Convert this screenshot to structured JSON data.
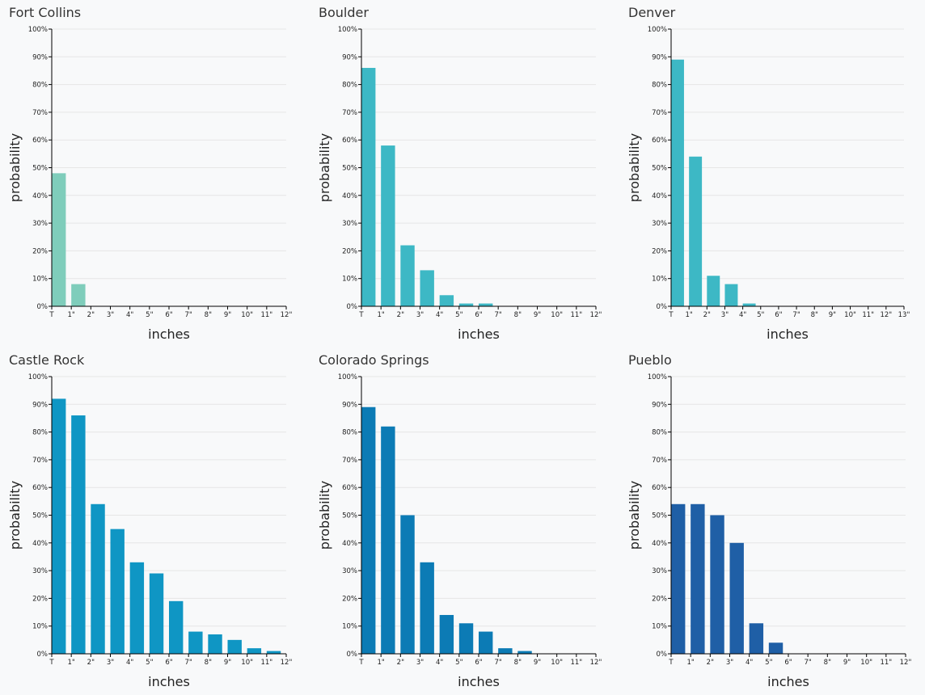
{
  "chart_data": [
    {
      "type": "histogram",
      "title": "Fort Collins",
      "xlabel": "inches",
      "ylabel": "probability",
      "color": "#7fcdbb",
      "bins": [
        {
          "value": 0,
          "label": "T"
        },
        {
          "value": 1,
          "label": "1\""
        },
        {
          "value": 2,
          "label": "2\""
        },
        {
          "value": 3,
          "label": "3\""
        },
        {
          "value": 4,
          "label": "4\""
        },
        {
          "value": 5,
          "label": "5\""
        },
        {
          "value": 6,
          "label": "6\""
        },
        {
          "value": 7,
          "label": "7\""
        },
        {
          "value": 8,
          "label": "8\""
        },
        {
          "value": 9,
          "label": "9\""
        },
        {
          "value": 10,
          "label": "10\""
        },
        {
          "value": 11,
          "label": "11\""
        },
        {
          "value": 12,
          "label": "12\""
        }
      ],
      "values": [
        48,
        8,
        0,
        0,
        0,
        0,
        0,
        0,
        0,
        0,
        0,
        0
      ],
      "xlim": [
        0,
        12
      ],
      "ylim": [
        0,
        100
      ],
      "yticks": [
        {
          "value": 0,
          "label": "0%"
        },
        {
          "value": 10,
          "label": "10%"
        },
        {
          "value": 20,
          "label": "20%"
        },
        {
          "value": 30,
          "label": "30%"
        },
        {
          "value": 40,
          "label": "40%"
        },
        {
          "value": 50,
          "label": "50%"
        },
        {
          "value": 60,
          "label": "60%"
        },
        {
          "value": 70,
          "label": "70%"
        },
        {
          "value": 80,
          "label": "80%"
        },
        {
          "value": 90,
          "label": "90%"
        },
        {
          "value": 100,
          "label": "100%"
        }
      ],
      "grid": true
    },
    {
      "type": "histogram",
      "title": "Boulder",
      "xlabel": "inches",
      "ylabel": "probability",
      "color": "#3db8c5",
      "bins": [
        {
          "value": 0,
          "label": "T"
        },
        {
          "value": 1,
          "label": "1\""
        },
        {
          "value": 2,
          "label": "2\""
        },
        {
          "value": 3,
          "label": "3\""
        },
        {
          "value": 4,
          "label": "4\""
        },
        {
          "value": 5,
          "label": "5\""
        },
        {
          "value": 6,
          "label": "6\""
        },
        {
          "value": 7,
          "label": "7\""
        },
        {
          "value": 8,
          "label": "8\""
        },
        {
          "value": 9,
          "label": "9\""
        },
        {
          "value": 10,
          "label": "10\""
        },
        {
          "value": 11,
          "label": "11\""
        },
        {
          "value": 12,
          "label": "12\""
        }
      ],
      "values": [
        86,
        58,
        22,
        13,
        4,
        1,
        1,
        0,
        0,
        0,
        0,
        0
      ],
      "xlim": [
        0,
        12
      ],
      "ylim": [
        0,
        100
      ],
      "yticks": [
        {
          "value": 0,
          "label": "0%"
        },
        {
          "value": 10,
          "label": "10%"
        },
        {
          "value": 20,
          "label": "20%"
        },
        {
          "value": 30,
          "label": "30%"
        },
        {
          "value": 40,
          "label": "40%"
        },
        {
          "value": 50,
          "label": "50%"
        },
        {
          "value": 60,
          "label": "60%"
        },
        {
          "value": 70,
          "label": "70%"
        },
        {
          "value": 80,
          "label": "80%"
        },
        {
          "value": 90,
          "label": "90%"
        },
        {
          "value": 100,
          "label": "100%"
        }
      ],
      "grid": true
    },
    {
      "type": "histogram",
      "title": "Denver",
      "xlabel": "inches",
      "ylabel": "probability",
      "color": "#3db8c5",
      "bins": [
        {
          "value": 0,
          "label": "T"
        },
        {
          "value": 1,
          "label": "1\""
        },
        {
          "value": 2,
          "label": "2\""
        },
        {
          "value": 3,
          "label": "3\""
        },
        {
          "value": 4,
          "label": "4\""
        },
        {
          "value": 5,
          "label": "5\""
        },
        {
          "value": 6,
          "label": "6\""
        },
        {
          "value": 7,
          "label": "7\""
        },
        {
          "value": 8,
          "label": "8\""
        },
        {
          "value": 9,
          "label": "9\""
        },
        {
          "value": 10,
          "label": "10\""
        },
        {
          "value": 11,
          "label": "11\""
        },
        {
          "value": 12,
          "label": "12\""
        },
        {
          "value": 13,
          "label": "13\""
        }
      ],
      "values": [
        89,
        54,
        11,
        8,
        1,
        0,
        0,
        0,
        0,
        0,
        0,
        0,
        0
      ],
      "xlim": [
        0,
        13
      ],
      "ylim": [
        0,
        100
      ],
      "yticks": [
        {
          "value": 0,
          "label": "0%"
        },
        {
          "value": 10,
          "label": "10%"
        },
        {
          "value": 20,
          "label": "20%"
        },
        {
          "value": 30,
          "label": "30%"
        },
        {
          "value": 40,
          "label": "40%"
        },
        {
          "value": 50,
          "label": "50%"
        },
        {
          "value": 60,
          "label": "60%"
        },
        {
          "value": 70,
          "label": "70%"
        },
        {
          "value": 80,
          "label": "80%"
        },
        {
          "value": 90,
          "label": "90%"
        },
        {
          "value": 100,
          "label": "100%"
        }
      ],
      "grid": true
    },
    {
      "type": "histogram",
      "title": "Castle Rock",
      "xlabel": "inches",
      "ylabel": "probability",
      "color": "#0f96c4",
      "bins": [
        {
          "value": 0,
          "label": "T"
        },
        {
          "value": 1,
          "label": "1\""
        },
        {
          "value": 2,
          "label": "2\""
        },
        {
          "value": 3,
          "label": "3\""
        },
        {
          "value": 4,
          "label": "4\""
        },
        {
          "value": 5,
          "label": "5\""
        },
        {
          "value": 6,
          "label": "6\""
        },
        {
          "value": 7,
          "label": "7\""
        },
        {
          "value": 8,
          "label": "8\""
        },
        {
          "value": 9,
          "label": "9\""
        },
        {
          "value": 10,
          "label": "10\""
        },
        {
          "value": 11,
          "label": "11\""
        },
        {
          "value": 12,
          "label": "12\""
        }
      ],
      "values": [
        92,
        86,
        54,
        45,
        33,
        29,
        19,
        8,
        7,
        5,
        2,
        1
      ],
      "xlim": [
        0,
        12
      ],
      "ylim": [
        0,
        100
      ],
      "yticks": [
        {
          "value": 0,
          "label": "0%"
        },
        {
          "value": 10,
          "label": "10%"
        },
        {
          "value": 20,
          "label": "20%"
        },
        {
          "value": 30,
          "label": "30%"
        },
        {
          "value": 40,
          "label": "40%"
        },
        {
          "value": 50,
          "label": "50%"
        },
        {
          "value": 60,
          "label": "60%"
        },
        {
          "value": 70,
          "label": "70%"
        },
        {
          "value": 80,
          "label": "80%"
        },
        {
          "value": 90,
          "label": "90%"
        },
        {
          "value": 100,
          "label": "100%"
        }
      ],
      "grid": true
    },
    {
      "type": "histogram",
      "title": "Colorado Springs",
      "xlabel": "inches",
      "ylabel": "probability",
      "color": "#0c7bb5",
      "bins": [
        {
          "value": 0,
          "label": "T"
        },
        {
          "value": 1,
          "label": "1\""
        },
        {
          "value": 2,
          "label": "2\""
        },
        {
          "value": 3,
          "label": "3\""
        },
        {
          "value": 4,
          "label": "4\""
        },
        {
          "value": 5,
          "label": "5\""
        },
        {
          "value": 6,
          "label": "6\""
        },
        {
          "value": 7,
          "label": "7\""
        },
        {
          "value": 8,
          "label": "8\""
        },
        {
          "value": 9,
          "label": "9\""
        },
        {
          "value": 10,
          "label": "10\""
        },
        {
          "value": 11,
          "label": "11\""
        },
        {
          "value": 12,
          "label": "12\""
        }
      ],
      "values": [
        89,
        82,
        50,
        33,
        14,
        11,
        8,
        2,
        1,
        0,
        0,
        0
      ],
      "xlim": [
        0,
        12
      ],
      "ylim": [
        0,
        100
      ],
      "yticks": [
        {
          "value": 0,
          "label": "0%"
        },
        {
          "value": 10,
          "label": "10%"
        },
        {
          "value": 20,
          "label": "20%"
        },
        {
          "value": 30,
          "label": "30%"
        },
        {
          "value": 40,
          "label": "40%"
        },
        {
          "value": 50,
          "label": "50%"
        },
        {
          "value": 60,
          "label": "60%"
        },
        {
          "value": 70,
          "label": "70%"
        },
        {
          "value": 80,
          "label": "80%"
        },
        {
          "value": 90,
          "label": "90%"
        },
        {
          "value": 100,
          "label": "100%"
        }
      ],
      "grid": true
    },
    {
      "type": "histogram",
      "title": "Pueblo",
      "xlabel": "inches",
      "ylabel": "probability",
      "color": "#1f5fa6",
      "bins": [
        {
          "value": 0,
          "label": "T"
        },
        {
          "value": 1,
          "label": "1\""
        },
        {
          "value": 2,
          "label": "2\""
        },
        {
          "value": 3,
          "label": "3\""
        },
        {
          "value": 4,
          "label": "4\""
        },
        {
          "value": 5,
          "label": "5\""
        },
        {
          "value": 6,
          "label": "6\""
        },
        {
          "value": 7,
          "label": "7\""
        },
        {
          "value": 8,
          "label": "8\""
        },
        {
          "value": 9,
          "label": "9\""
        },
        {
          "value": 10,
          "label": "10\""
        },
        {
          "value": 11,
          "label": "11\""
        },
        {
          "value": 12,
          "label": "12\""
        }
      ],
      "values": [
        54,
        54,
        50,
        40,
        11,
        4,
        0,
        0,
        0,
        0,
        0,
        0
      ],
      "xlim": [
        0,
        12
      ],
      "ylim": [
        0,
        100
      ],
      "yticks": [
        {
          "value": 0,
          "label": "0%"
        },
        {
          "value": 10,
          "label": "10%"
        },
        {
          "value": 20,
          "label": "20%"
        },
        {
          "value": 30,
          "label": "30%"
        },
        {
          "value": 40,
          "label": "40%"
        },
        {
          "value": 50,
          "label": "50%"
        },
        {
          "value": 60,
          "label": "60%"
        },
        {
          "value": 70,
          "label": "70%"
        },
        {
          "value": 80,
          "label": "80%"
        },
        {
          "value": 90,
          "label": "90%"
        },
        {
          "value": 100,
          "label": "100%"
        }
      ],
      "grid": true
    }
  ]
}
